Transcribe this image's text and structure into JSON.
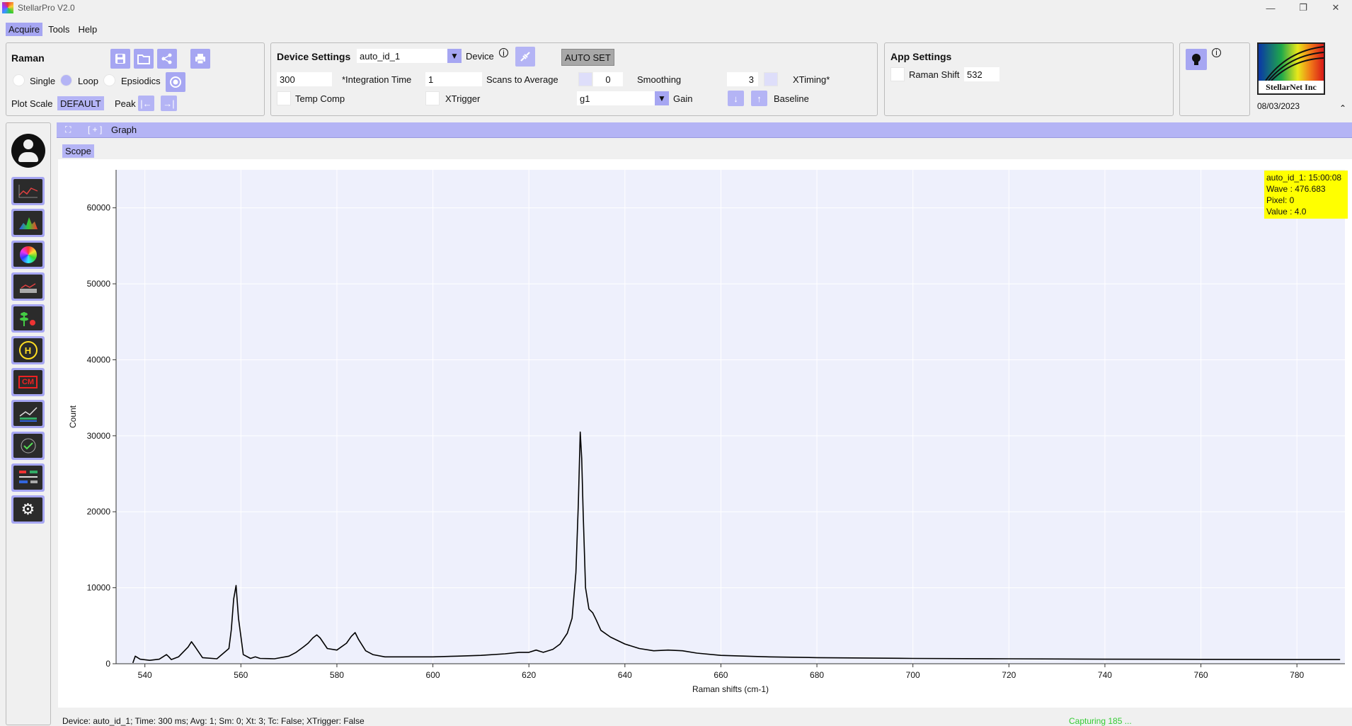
{
  "window": {
    "title": "StellarPro V2.0",
    "controls": [
      "—",
      "❐",
      "✕"
    ]
  },
  "menu": [
    {
      "label": "Acquire",
      "active": true
    },
    {
      "label": "Tools",
      "active": false
    },
    {
      "label": "Help",
      "active": false
    }
  ],
  "raman_panel": {
    "title": "Raman",
    "modes": [
      {
        "label": "Single",
        "selected": false
      },
      {
        "label": "Loop",
        "selected": true
      },
      {
        "label": "Epsiodics",
        "selected": false
      }
    ],
    "plot_scale_label": "Plot Scale",
    "plot_scale_value": "DEFAULT",
    "peak_label": "Peak",
    "icons": [
      "save-icon",
      "folder-open-icon",
      "share-icon",
      "print-icon",
      "record-icon",
      "peak-left-icon",
      "peak-right-icon"
    ]
  },
  "device_settings": {
    "title": "Device Settings",
    "device_id": "auto_id_1",
    "device_label": "Device",
    "autoset_label": "AUTO SET",
    "integration_time_value": "300",
    "integration_time_label": "*Integration Time",
    "scans_to_average_value": "1",
    "scans_to_average_label": "Scans to Average",
    "smoothing_value": "0",
    "smoothing_label": "Smoothing",
    "xtiming_value": "3",
    "xtiming_label": "XTiming*",
    "temp_comp_label": "Temp Comp",
    "xtrigger_label": "XTrigger",
    "gain_value": "g1",
    "gain_label": "Gain",
    "baseline_label": "Baseline"
  },
  "app_settings": {
    "title": "App Settings",
    "raman_shift_label": "Raman Shift",
    "raman_shift_value": "532"
  },
  "logo": {
    "text": "StellarNet Inc",
    "date": "08/03/2023"
  },
  "graph": {
    "section_title": "Graph",
    "expand_glyph": "[ + ]",
    "tab_label": "Scope",
    "tooltip": {
      "line1": "auto_id_1:  15:00:08",
      "line2": "Wave : 476.683",
      "line3": "Pixel: 0",
      "line4": "Value : 4.0"
    }
  },
  "status": {
    "left": "Device: auto_id_1; Time: 300 ms; Avg: 1; Sm: 0; Xt: 3; Tc: False; XTrigger: False",
    "right": "Capturing 185 ..."
  },
  "chart_data": {
    "type": "line",
    "xlabel": "Raman shifts (cm-1)",
    "ylabel": "Count",
    "xlim": [
      534,
      790
    ],
    "ylim": [
      0,
      65000
    ],
    "xticks": [
      540,
      560,
      580,
      600,
      620,
      640,
      660,
      680,
      700,
      720,
      740,
      760,
      780
    ],
    "yticks": [
      0,
      10000,
      20000,
      30000,
      40000,
      50000,
      60000
    ],
    "grid": true,
    "series": [
      {
        "color": "#000000",
        "x": [
          537.5,
          538,
          539,
          541,
          543,
          544.5,
          545,
          545.5,
          547,
          549,
          549.7,
          550.5,
          552,
          555,
          557.5,
          558,
          558.5,
          559,
          559.5,
          560.5,
          562,
          563,
          564,
          567,
          570,
          571.5,
          573,
          574,
          575,
          575.8,
          576.5,
          578,
          580,
          582,
          583,
          583.8,
          584.5,
          586,
          587.5,
          590,
          595,
          600,
          605,
          610,
          615,
          618,
          620,
          621.5,
          623,
          625,
          626.5,
          628,
          629,
          629.8,
          630.3,
          630.7,
          631,
          631.3,
          631.8,
          632.5,
          633.3,
          634,
          635,
          637,
          640,
          643,
          646,
          649,
          652,
          655,
          660,
          670,
          680,
          700,
          720,
          740,
          760,
          780,
          789
        ],
        "y": [
          100,
          1000,
          600,
          450,
          600,
          1200,
          900,
          550,
          900,
          2200,
          2900,
          2200,
          800,
          650,
          2000,
          4500,
          8500,
          10300,
          6000,
          1200,
          700,
          900,
          700,
          650,
          1000,
          1500,
          2200,
          2700,
          3400,
          3800,
          3400,
          2000,
          1800,
          2700,
          3600,
          4100,
          3200,
          1700,
          1200,
          900,
          900,
          900,
          1000,
          1100,
          1300,
          1500,
          1500,
          1800,
          1500,
          1900,
          2600,
          4000,
          6000,
          12000,
          21000,
          30500,
          27000,
          20000,
          10000,
          7200,
          6700,
          5800,
          4400,
          3500,
          2600,
          2000,
          1700,
          1800,
          1700,
          1400,
          1100,
          900,
          800,
          700,
          650,
          600,
          580,
          550,
          550
        ]
      }
    ]
  }
}
